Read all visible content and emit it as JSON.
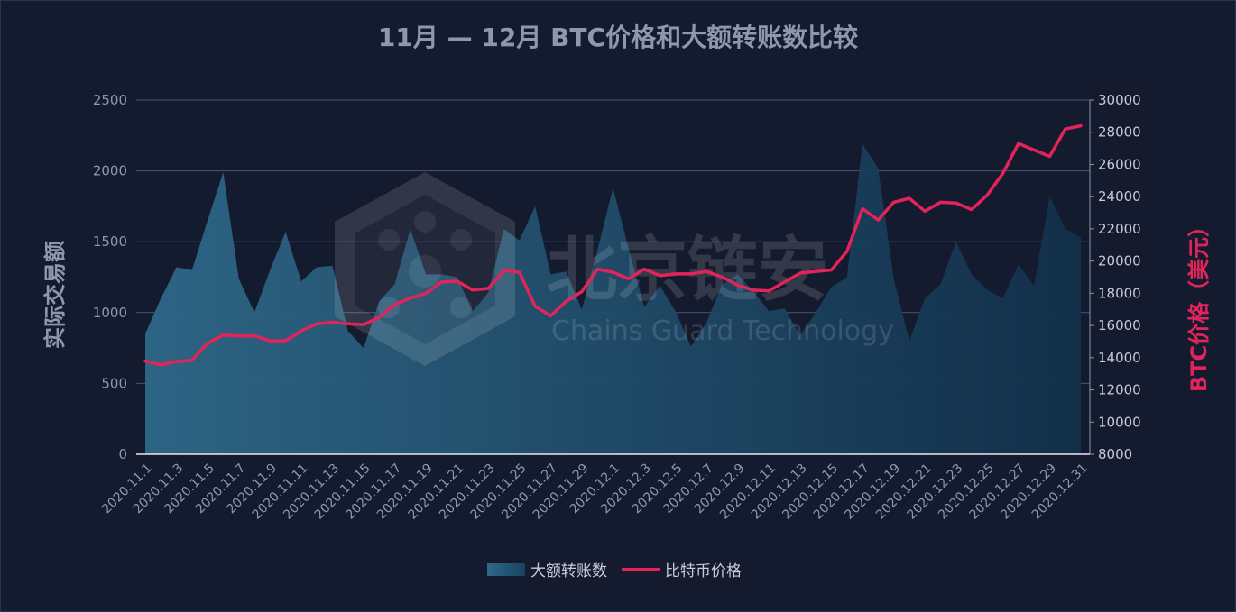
{
  "watermark": {
    "text": "北京链安",
    "subtext": "Chains Guard Technology"
  },
  "chart_data": {
    "type": "area-line",
    "title": "11月 — 12月 BTC价格和大额转账数比较",
    "ylabel_left": "实际交易额",
    "ylabel_right": "BTC价格（美元）",
    "ylim_left": [
      0,
      2500
    ],
    "ylim_right": [
      8000,
      30000
    ],
    "yticks_left": [
      "0",
      "500",
      "1000",
      "1500",
      "2000",
      "2500"
    ],
    "yticks_right": [
      "8000",
      "10000",
      "12000",
      "14000",
      "16000",
      "18000",
      "20000",
      "22000",
      "24000",
      "26000",
      "28000",
      "30000"
    ],
    "grid": true,
    "legend_position": "bottom-center",
    "x_dates": [
      "2020.11.1",
      "2020.11.2",
      "2020.11.3",
      "2020.11.4",
      "2020.11.5",
      "2020.11.6",
      "2020.11.7",
      "2020.11.8",
      "2020.11.9",
      "2020.11.10",
      "2020.11.11",
      "2020.11.12",
      "2020.11.13",
      "2020.11.14",
      "2020.11.15",
      "2020.11.16",
      "2020.11.17",
      "2020.11.18",
      "2020.11.19",
      "2020.11.20",
      "2020.11.21",
      "2020.11.22",
      "2020.11.23",
      "2020.11.24",
      "2020.11.25",
      "2020.11.26",
      "2020.11.27",
      "2020.11.28",
      "2020.11.29",
      "2020.11.30",
      "2020.12.1",
      "2020.12.2",
      "2020.12.3",
      "2020.12.4",
      "2020.12.5",
      "2020.12.6",
      "2020.12.7",
      "2020.12.8",
      "2020.12.9",
      "2020.12.10",
      "2020.12.11",
      "2020.12.12",
      "2020.12.13",
      "2020.12.14",
      "2020.12.15",
      "2020.12.16",
      "2020.12.17",
      "2020.12.18",
      "2020.12.19",
      "2020.12.20",
      "2020.12.21",
      "2020.12.22",
      "2020.12.23",
      "2020.12.24",
      "2020.12.25",
      "2020.12.26",
      "2020.12.27",
      "2020.12.28",
      "2020.12.29",
      "2020.12.30",
      "2020.12.31"
    ],
    "x_tick_labels": [
      "2020.11.1",
      "2020.11.3",
      "2020.11.5",
      "2020.11.7",
      "2020.11.9",
      "2020.11.11",
      "2020.11.13",
      "2020.11.15",
      "2020.11.17",
      "2020.11.19",
      "2020.11.21",
      "2020.11.23",
      "2020.11.25",
      "2020.11.27",
      "2020.11.29",
      "2020.12.1",
      "2020.12.3",
      "2020.12.5",
      "2020.12.7",
      "2020.12.9",
      "2020.12.11",
      "2020.12.13",
      "2020.12.15",
      "2020.12.17",
      "2020.12.19",
      "2020.12.21",
      "2020.12.23",
      "2020.12.25",
      "2020.12.27",
      "2020.12.29",
      "2020.12.31"
    ],
    "series": [
      {
        "name": "大额转账数",
        "type": "area",
        "axis": "left",
        "color": "#2b5d7d",
        "values": [
          850,
          1100,
          1320,
          1300,
          1650,
          1990,
          1240,
          1000,
          1300,
          1570,
          1220,
          1320,
          1330,
          870,
          750,
          1080,
          1200,
          1590,
          1270,
          1270,
          1250,
          1010,
          1140,
          1590,
          1510,
          1750,
          1270,
          1290,
          1020,
          1440,
          1880,
          1450,
          1040,
          1190,
          1010,
          760,
          930,
          1200,
          1270,
          1150,
          1010,
          1030,
          840,
          1000,
          1180,
          1250,
          2190,
          2020,
          1240,
          800,
          1100,
          1200,
          1500,
          1270,
          1160,
          1100,
          1340,
          1190,
          1820,
          1590,
          1530
        ]
      },
      {
        "name": "比特币价格",
        "type": "line",
        "axis": "right",
        "color": "#e2245a",
        "values": [
          13800,
          13550,
          13750,
          13850,
          14900,
          15400,
          15350,
          15350,
          15050,
          15050,
          15650,
          16100,
          16200,
          16100,
          16050,
          16500,
          17300,
          17700,
          18000,
          18700,
          18750,
          18200,
          18300,
          19400,
          19300,
          17200,
          16600,
          17500,
          18100,
          19500,
          19300,
          18900,
          19500,
          19100,
          19200,
          19200,
          19350,
          19000,
          18500,
          18200,
          18150,
          18700,
          19250,
          19350,
          19450,
          20600,
          23250,
          22550,
          23650,
          23900,
          23100,
          23650,
          23600,
          23200,
          24100,
          25450,
          27300,
          26900,
          26500,
          28200,
          28400
        ]
      }
    ]
  }
}
